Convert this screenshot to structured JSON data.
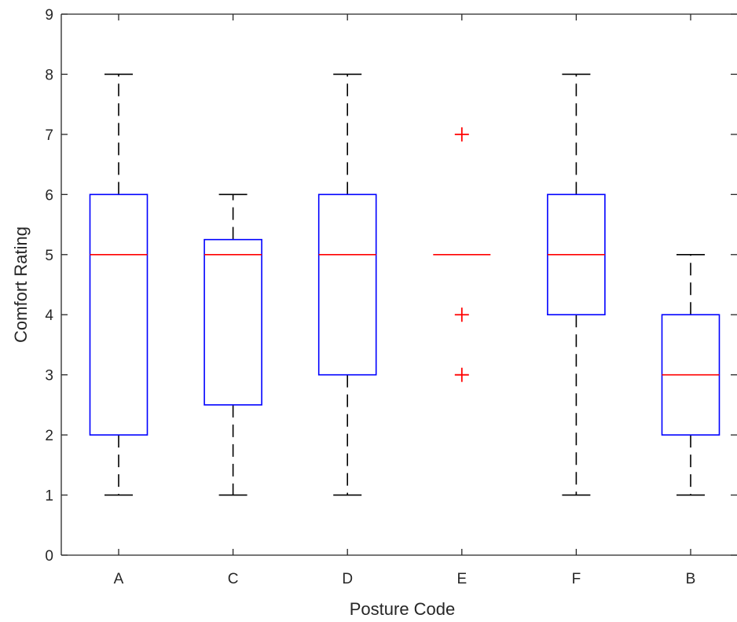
{
  "chart_data": {
    "type": "box",
    "xlabel": "Posture Code",
    "ylabel": "Comfort Rating",
    "ylim": [
      0,
      9
    ],
    "yticks": [
      0,
      1,
      2,
      3,
      4,
      5,
      6,
      7,
      8,
      9
    ],
    "categories": [
      "A",
      "C",
      "D",
      "E",
      "F",
      "B"
    ],
    "boxes": [
      {
        "category": "A",
        "whisker_low": 1,
        "q1": 2,
        "median": 5,
        "q3": 6,
        "whisker_high": 8,
        "outliers": []
      },
      {
        "category": "C",
        "whisker_low": 1,
        "q1": 2.5,
        "median": 5,
        "q3": 5.25,
        "whisker_high": 6,
        "outliers": []
      },
      {
        "category": "D",
        "whisker_low": 1,
        "q1": 3,
        "median": 5,
        "q3": 6,
        "whisker_high": 8,
        "outliers": []
      },
      {
        "category": "E",
        "whisker_low": 5,
        "q1": 5,
        "median": 5,
        "q3": 5,
        "whisker_high": 5,
        "outliers": [
          3,
          4,
          7
        ]
      },
      {
        "category": "F",
        "whisker_low": 1,
        "q1": 4,
        "median": 5,
        "q3": 6,
        "whisker_high": 8,
        "outliers": []
      },
      {
        "category": "B",
        "whisker_low": 1,
        "q1": 2,
        "median": 3,
        "q3": 4,
        "whisker_high": 5,
        "outliers": []
      }
    ],
    "grid": false,
    "colors": {
      "box": "#0000ff",
      "median": "#ff0000",
      "whisker": "#000000",
      "outlier": "#ff0000",
      "axis": "#262626"
    }
  }
}
